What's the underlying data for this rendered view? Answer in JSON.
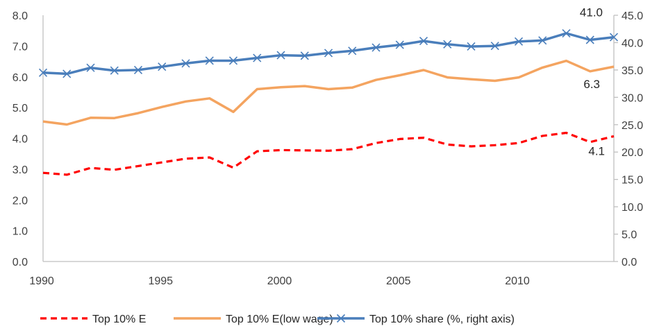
{
  "chart_data": {
    "type": "line",
    "title": "",
    "xlabel": "",
    "ylabel": "",
    "y2label": "",
    "x": [
      1990,
      1991,
      1992,
      1993,
      1994,
      1995,
      1996,
      1997,
      1998,
      1999,
      2000,
      2001,
      2002,
      2003,
      2004,
      2005,
      2006,
      2007,
      2008,
      2009,
      2010,
      2011,
      2012,
      2013,
      2014
    ],
    "x_ticks": [
      1990,
      1995,
      2000,
      2005,
      2010
    ],
    "x_tick_labels": [
      "1990",
      "1995",
      "2000",
      "2005",
      "2010"
    ],
    "xlim": [
      1990,
      2014
    ],
    "ylim": [
      0,
      8
    ],
    "y_ticks": [
      0,
      1,
      2,
      3,
      4,
      5,
      6,
      7,
      8
    ],
    "y_tick_labels": [
      "0.0",
      "1.0",
      "2.0",
      "3.0",
      "4.0",
      "5.0",
      "6.0",
      "7.0",
      "8.0"
    ],
    "y2lim": [
      0,
      45
    ],
    "y2_ticks": [
      0,
      5,
      10,
      15,
      20,
      25,
      30,
      35,
      40,
      45
    ],
    "y2_tick_labels": [
      "0.0",
      "5.0",
      "10.0",
      "15.0",
      "20.0",
      "25.0",
      "30.0",
      "35.0",
      "40.0",
      "45.0"
    ],
    "grid": false,
    "legend_position": "bottom",
    "series": [
      {
        "name": "Top 10% E",
        "axis": "left",
        "color": "#ff0000",
        "style": "dashed",
        "marker": "none",
        "values": [
          2.88,
          2.82,
          3.04,
          2.98,
          3.1,
          3.22,
          3.34,
          3.38,
          3.05,
          3.58,
          3.62,
          3.61,
          3.6,
          3.65,
          3.85,
          3.98,
          4.02,
          3.8,
          3.74,
          3.78,
          3.85,
          4.08,
          4.18,
          3.88,
          4.07
        ],
        "end_label": "4.1"
      },
      {
        "name": "Top 10% E(low wage)",
        "axis": "left",
        "color": "#f4a460",
        "style": "solid",
        "marker": "none",
        "values": [
          4.55,
          4.45,
          4.67,
          4.66,
          4.82,
          5.02,
          5.2,
          5.3,
          4.86,
          5.6,
          5.66,
          5.7,
          5.6,
          5.65,
          5.9,
          6.05,
          6.22,
          5.98,
          5.92,
          5.87,
          5.98,
          6.3,
          6.52,
          6.18,
          6.33
        ],
        "end_label": "6.3"
      },
      {
        "name": "Top 10% share (%, right axis)",
        "axis": "right",
        "color": "#4a7ebb",
        "style": "solid",
        "marker": "x",
        "values": [
          34.5,
          34.3,
          35.4,
          34.9,
          35.0,
          35.6,
          36.2,
          36.7,
          36.7,
          37.2,
          37.7,
          37.6,
          38.1,
          38.5,
          39.1,
          39.6,
          40.3,
          39.7,
          39.3,
          39.4,
          40.2,
          40.4,
          41.7,
          40.5,
          41.0
        ],
        "end_label": "41.0"
      }
    ]
  }
}
